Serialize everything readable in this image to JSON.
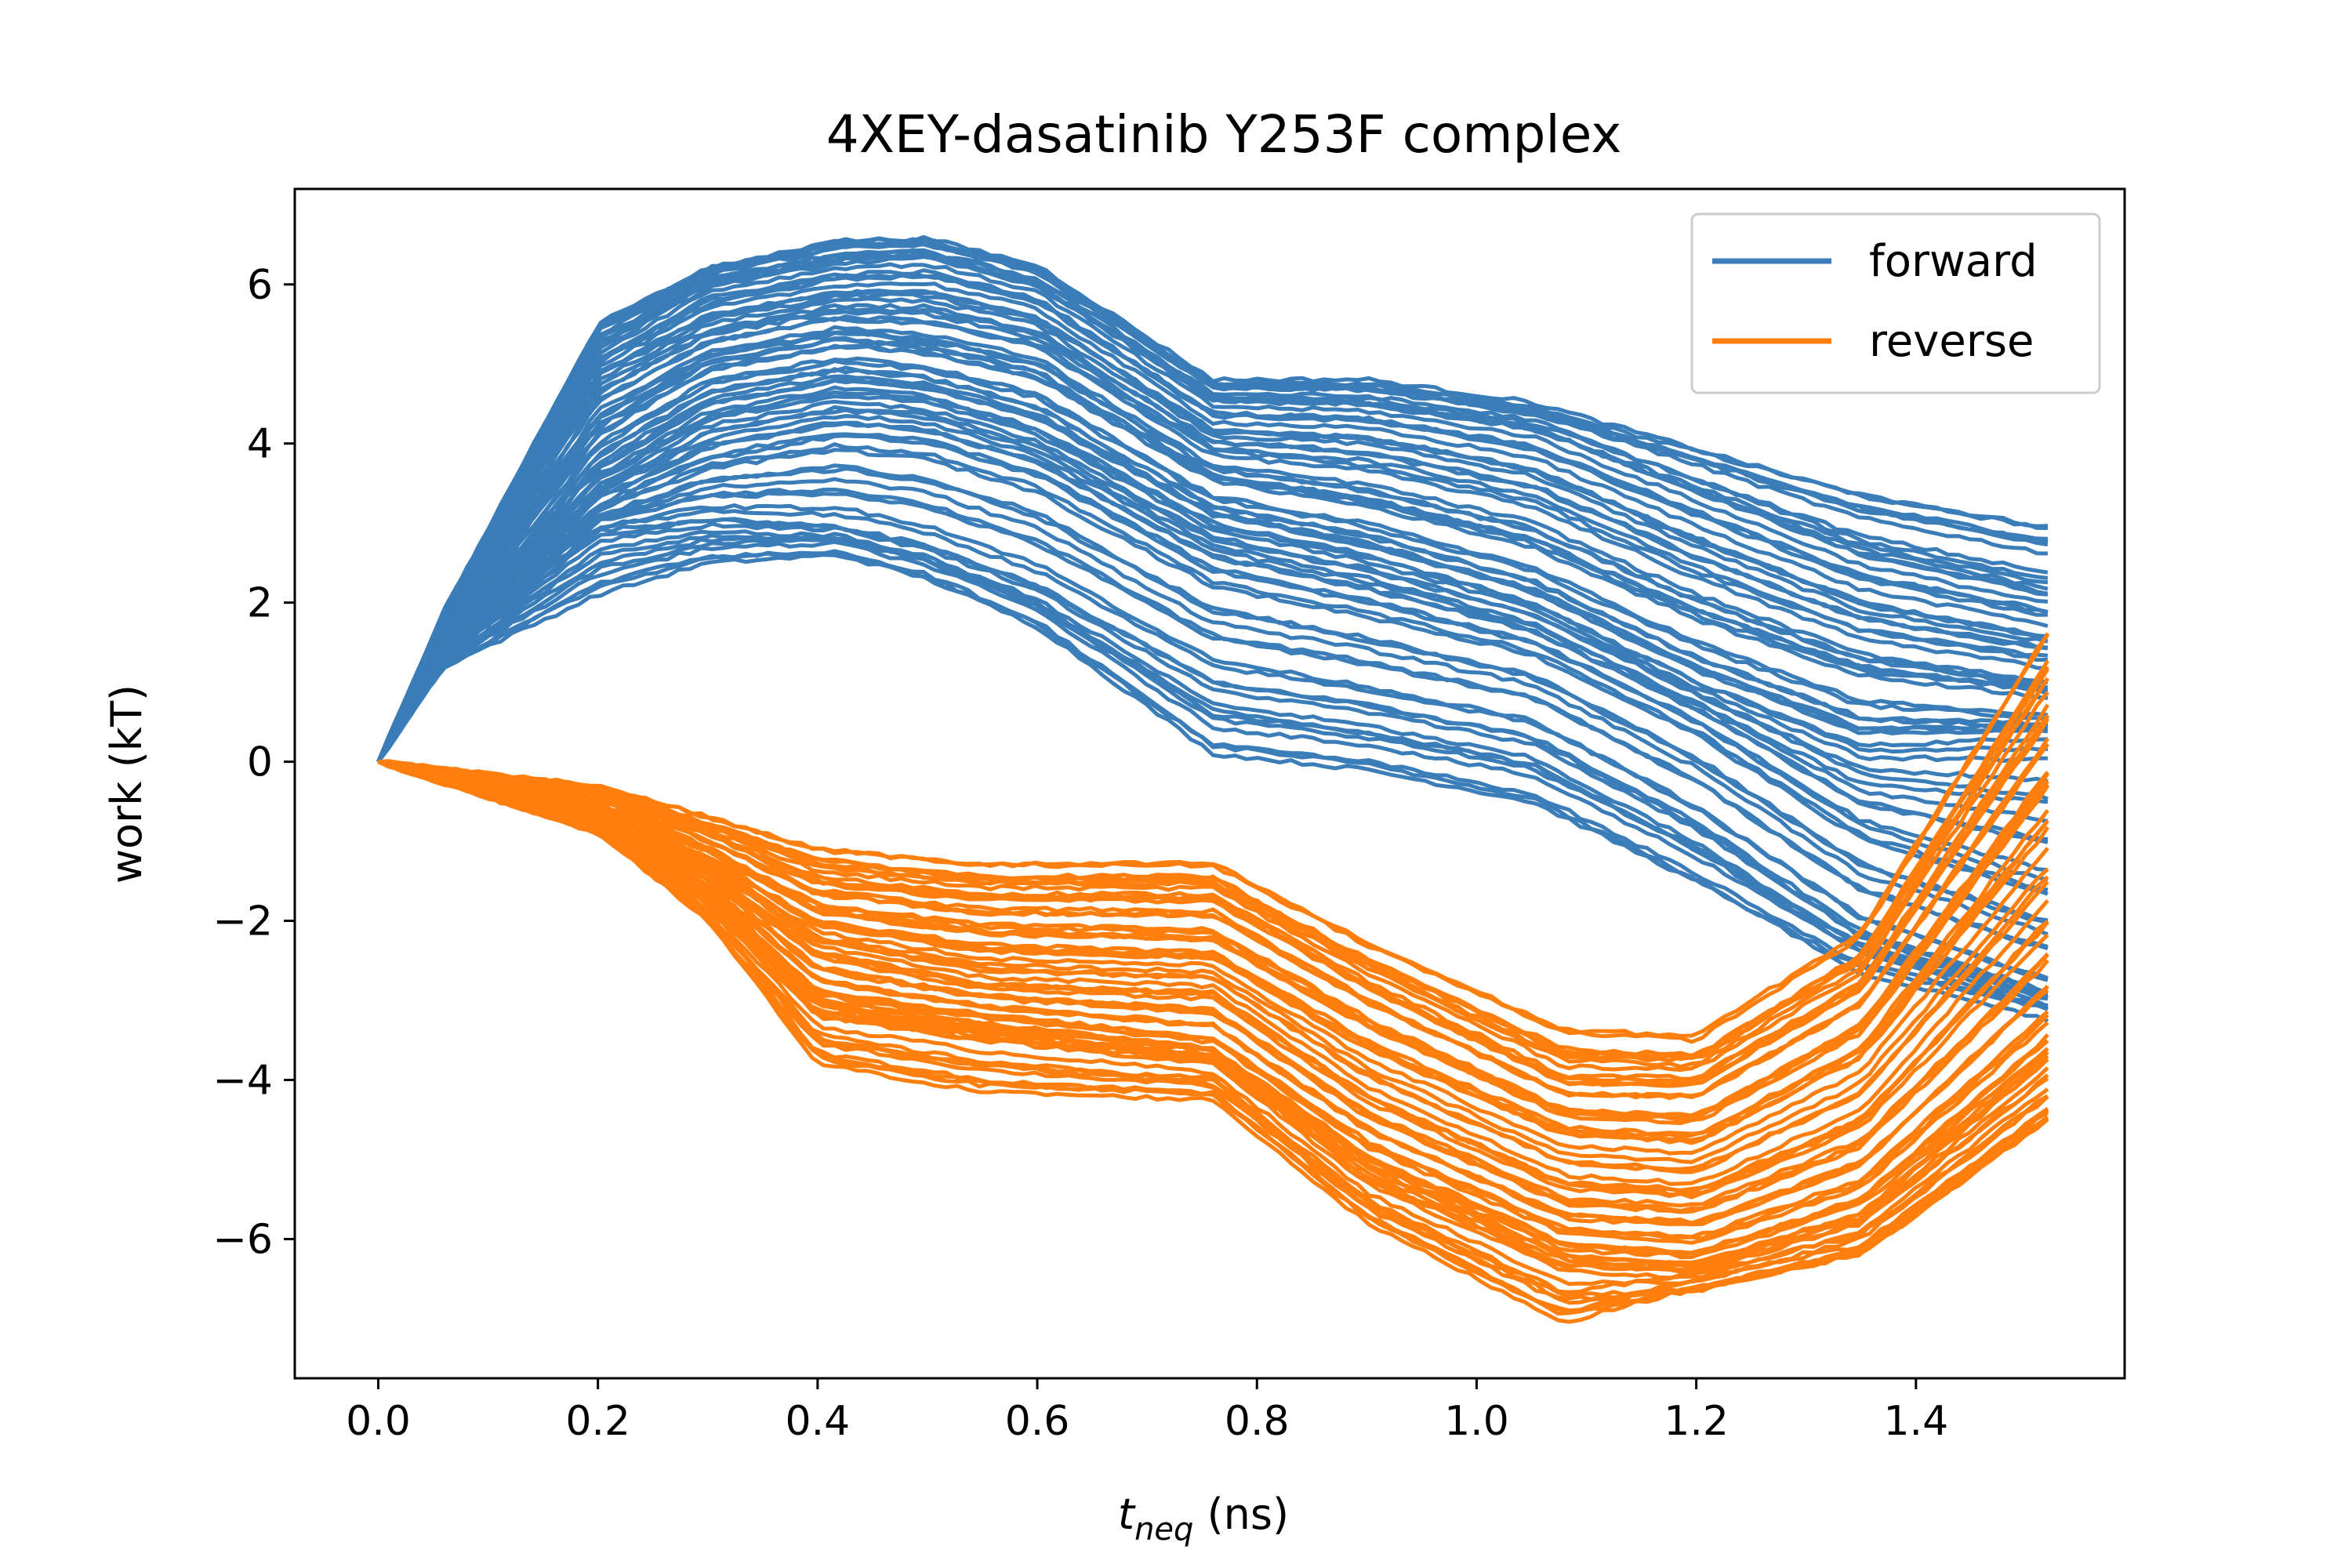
{
  "chart_data": {
    "type": "line",
    "title": "4XEY-dasatinib Y253F complex",
    "xlabel_main": "t",
    "xlabel_sub": "neq",
    "xlabel_unit": " (ns)",
    "ylabel": "work (kT)",
    "xlim": [
      -0.076,
      1.59
    ],
    "ylim": [
      -7.75,
      7.2
    ],
    "xticks": [
      0.0,
      0.2,
      0.4,
      0.6,
      0.8,
      1.0,
      1.2,
      1.4
    ],
    "xtick_labels": [
      "0.0",
      "0.2",
      "0.4",
      "0.6",
      "0.8",
      "1.0",
      "1.2",
      "1.4"
    ],
    "yticks": [
      -6,
      -4,
      -2,
      0,
      2,
      4,
      6
    ],
    "ytick_labels": [
      "−6",
      "−4",
      "−2",
      "0",
      "2",
      "4",
      "6"
    ],
    "legend": {
      "position": "top-right",
      "entries": [
        "forward",
        "reverse"
      ]
    },
    "colors": {
      "forward": "#3a7db8",
      "reverse": "#ff7f0e"
    },
    "series": [
      {
        "name": "forward",
        "x": [
          0.0,
          0.06,
          0.2,
          0.3,
          0.42,
          0.5,
          0.6,
          0.76,
          0.9,
          1.05,
          1.2,
          1.35,
          1.52
        ],
        "representatives": [
          [
            0,
            1.9,
            5.5,
            6.2,
            6.55,
            6.55,
            6.2,
            4.75,
            4.75,
            4.45,
            3.9,
            3.35,
            2.95
          ],
          [
            0,
            1.8,
            5.2,
            6.0,
            6.3,
            6.35,
            6.0,
            4.55,
            4.5,
            4.2,
            3.4,
            2.6,
            2.1
          ],
          [
            0,
            1.7,
            4.8,
            5.5,
            5.8,
            5.8,
            5.5,
            4.1,
            4.0,
            3.6,
            2.7,
            1.9,
            1.5
          ],
          [
            0,
            1.6,
            4.2,
            5.0,
            5.3,
            5.2,
            4.9,
            3.6,
            3.3,
            2.8,
            1.9,
            1.2,
            0.9
          ],
          [
            0,
            1.5,
            3.6,
            4.4,
            4.7,
            4.6,
            4.2,
            3.0,
            2.6,
            2.0,
            1.0,
            0.2,
            0.3
          ],
          [
            0,
            1.4,
            3.2,
            3.8,
            4.1,
            4.0,
            3.6,
            2.4,
            2.0,
            1.5,
            0.5,
            -0.8,
            -1.5
          ],
          [
            0,
            1.3,
            2.9,
            3.05,
            2.95,
            2.7,
            2.2,
            1.0,
            0.7,
            0.3,
            -0.8,
            -2.2,
            -3.0
          ],
          [
            0,
            1.2,
            2.1,
            2.5,
            2.6,
            2.3,
            1.7,
            0.1,
            -0.1,
            -0.5,
            -1.5,
            -2.6,
            -3.1
          ]
        ]
      },
      {
        "name": "reverse",
        "x": [
          0.0,
          0.2,
          0.3,
          0.4,
          0.55,
          0.76,
          0.9,
          1.08,
          1.2,
          1.35,
          1.52
        ],
        "representatives": [
          [
            0,
            -0.3,
            -0.7,
            -1.1,
            -1.3,
            -1.3,
            -2.3,
            -3.4,
            -3.5,
            -2.2,
            1.6
          ],
          [
            0,
            -0.4,
            -0.9,
            -1.5,
            -1.7,
            -1.7,
            -2.8,
            -4.0,
            -4.0,
            -2.8,
            0.6
          ],
          [
            0,
            -0.6,
            -1.2,
            -2.0,
            -2.3,
            -2.4,
            -3.5,
            -4.6,
            -4.7,
            -3.6,
            -0.6
          ],
          [
            0,
            -0.7,
            -1.4,
            -2.4,
            -2.8,
            -2.9,
            -4.2,
            -5.3,
            -5.4,
            -4.5,
            -2.0
          ],
          [
            0,
            -0.8,
            -1.6,
            -2.9,
            -3.2,
            -3.5,
            -4.8,
            -5.9,
            -6.0,
            -5.3,
            -3.2
          ],
          [
            0,
            -0.85,
            -1.8,
            -3.2,
            -3.5,
            -3.8,
            -5.3,
            -6.4,
            -6.5,
            -5.9,
            -4.1
          ],
          [
            0,
            -0.9,
            -2.0,
            -3.8,
            -4.15,
            -4.25,
            -5.8,
            -7.05,
            -6.6,
            -6.2,
            -4.5
          ]
        ]
      }
    ]
  }
}
